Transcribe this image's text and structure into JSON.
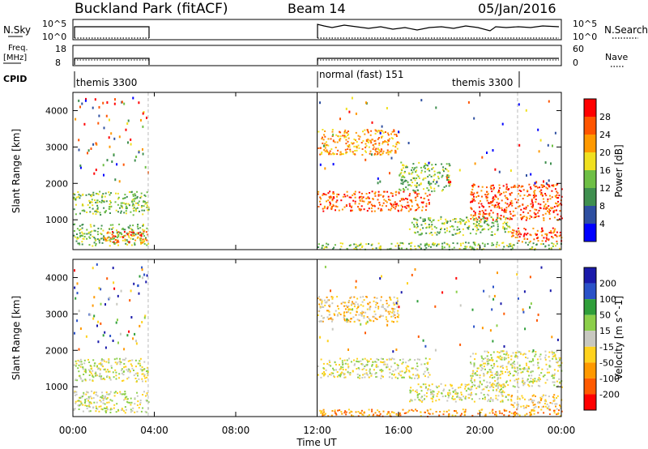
{
  "header": {
    "site": "Buckland Park (fitACF)",
    "beam": "Beam 14",
    "date": "05/Jan/2016"
  },
  "strips": {
    "nsky": {
      "label": "N.Sky",
      "ticks": [
        "10^5",
        "10^0"
      ]
    },
    "nsearch": {
      "label": "N.Search",
      "ticks": [
        "10^5",
        "10^0"
      ]
    },
    "freq": {
      "label_line1": "Freq.",
      "label_line2": "[MHz]",
      "ticks": [
        "18",
        "8"
      ]
    },
    "nave": {
      "label": "Nave",
      "ticks": [
        "60",
        "0"
      ]
    },
    "cpid": {
      "label": "CPID",
      "segments": [
        {
          "name": "themis 3300",
          "start_h": 0.0
        },
        {
          "name": "normal (fast) 151",
          "start_h": 12.0
        },
        {
          "name": "themis 3300",
          "start_h": 21.85
        }
      ]
    }
  },
  "colors": {
    "power": [
      "#0000ff",
      "#2e4fa0",
      "#3f8f4f",
      "#6ebf45",
      "#f0e020",
      "#ff9900",
      "#ff5500",
      "#ff0000"
    ],
    "velocity": [
      "#1a1aaa",
      "#2a52c8",
      "#2f9e3a",
      "#8ccf4a",
      "#c8c8c0",
      "#ffd21e",
      "#ff9900",
      "#ff5a00",
      "#ff0000"
    ]
  },
  "chart_data": [
    {
      "type": "heatmap",
      "title": "",
      "xlabel": "Time UT",
      "ylabel": "Slant Range [km]",
      "xlim_hours": [
        0,
        24
      ],
      "ylim_km": [
        180,
        4500
      ],
      "xticks": [
        "00:00",
        "04:00",
        "08:00",
        "12:00",
        "16:00",
        "20:00",
        "00:00"
      ],
      "yticks": [
        "1000",
        "2000",
        "3000",
        "4000"
      ],
      "colorbar": {
        "label": "Power [dB]",
        "ticks": [
          "4",
          "8",
          "12",
          "16",
          "20",
          "24",
          "28"
        ],
        "range": [
          0,
          32
        ]
      },
      "regions": [
        {
          "t0": 0.0,
          "t1": 3.7,
          "r0": 1150,
          "r1": 1800,
          "level": 3
        },
        {
          "t0": 0.0,
          "t1": 3.7,
          "r0": 300,
          "r1": 900,
          "level": 3
        },
        {
          "t0": 1.5,
          "t1": 3.7,
          "r0": 380,
          "r1": 700,
          "level": 6
        },
        {
          "t0": 12.0,
          "t1": 17.5,
          "r0": 1250,
          "r1": 1800,
          "level": 6
        },
        {
          "t0": 12.0,
          "t1": 16.0,
          "r0": 2800,
          "r1": 3500,
          "level": 5
        },
        {
          "t0": 12.0,
          "t1": 24.0,
          "r0": 200,
          "r1": 400,
          "level": 3
        },
        {
          "t0": 16.5,
          "t1": 21.5,
          "r0": 600,
          "r1": 1100,
          "level": 3
        },
        {
          "t0": 19.5,
          "t1": 24.0,
          "r0": 1000,
          "r1": 2000,
          "level": 6
        },
        {
          "t0": 21.5,
          "t1": 24.0,
          "r0": 400,
          "r1": 800,
          "level": 6
        },
        {
          "t0": 16.0,
          "t1": 18.5,
          "r0": 1800,
          "r1": 2600,
          "level": 3
        }
      ]
    },
    {
      "type": "heatmap",
      "title": "",
      "xlabel": "Time UT",
      "ylabel": "Slant Range [km]",
      "xlim_hours": [
        0,
        24
      ],
      "ylim_km": [
        180,
        4500
      ],
      "xticks": [
        "00:00",
        "04:00",
        "08:00",
        "12:00",
        "16:00",
        "20:00",
        "00:00"
      ],
      "yticks": [
        "1000",
        "2000",
        "3000",
        "4000"
      ],
      "colorbar": {
        "label": "Velocity [m s^-1]",
        "ticks": [
          "200",
          "100",
          "50",
          "15",
          "-15",
          "-50",
          "-100",
          "-200"
        ],
        "range": [
          -300,
          300
        ]
      },
      "regions": [
        {
          "t0": 0.0,
          "t1": 3.7,
          "r0": 1150,
          "r1": 1800,
          "level": 4
        },
        {
          "t0": 0.0,
          "t1": 3.7,
          "r0": 300,
          "r1": 900,
          "level": 4
        },
        {
          "t0": 12.0,
          "t1": 17.5,
          "r0": 1250,
          "r1": 1800,
          "level": 4
        },
        {
          "t0": 12.0,
          "t1": 16.0,
          "r0": 2800,
          "r1": 3500,
          "level": 5
        },
        {
          "t0": 12.0,
          "t1": 24.0,
          "r0": 200,
          "r1": 400,
          "level": 6
        },
        {
          "t0": 16.5,
          "t1": 21.5,
          "r0": 600,
          "r1": 1100,
          "level": 4
        },
        {
          "t0": 19.5,
          "t1": 24.0,
          "r0": 1000,
          "r1": 2000,
          "level": 4
        },
        {
          "t0": 21.5,
          "t1": 24.0,
          "r0": 400,
          "r1": 800,
          "level": 5
        }
      ]
    }
  ]
}
